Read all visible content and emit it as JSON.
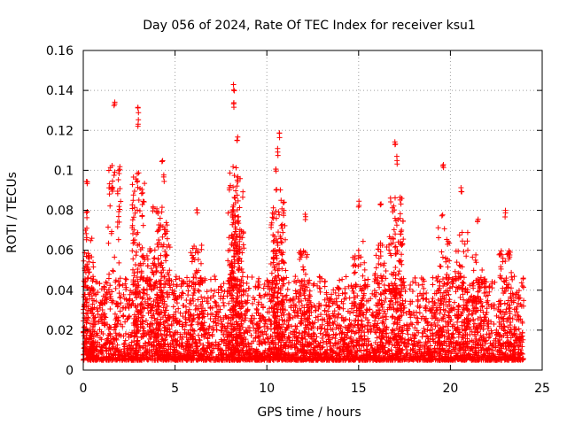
{
  "chart_data": {
    "type": "scatter",
    "title": "Day 056 of 2024, Rate Of TEC Index for receiver ksu1",
    "xlabel": "GPS time / hours",
    "ylabel": "ROTI / TECUs",
    "xlim": [
      0,
      25
    ],
    "ylim": [
      0,
      0.16
    ],
    "x_ticks": [
      0,
      5,
      10,
      15,
      20,
      25
    ],
    "x_tick_labels": [
      "0",
      "5",
      "10",
      "15",
      "20",
      "25"
    ],
    "y_ticks": [
      0,
      0.02,
      0.04,
      0.06,
      0.08,
      0.1,
      0.12,
      0.14,
      0.16
    ],
    "y_tick_labels": [
      "0",
      "0.02",
      "0.04",
      "0.06",
      "0.08",
      "0.1",
      "0.12",
      "0.14",
      "0.16"
    ],
    "grid": true,
    "marker": "+",
    "marker_color": "#ff0000",
    "series": [
      {
        "name": "ROTI",
        "description_range_hours": [
          0,
          24
        ],
        "typical_values_range": [
          0.005,
          0.04
        ],
        "peaks": [
          {
            "x": 1.7,
            "y": 0.135
          },
          {
            "x": 3.0,
            "y": 0.132
          },
          {
            "x": 3.0,
            "y": 0.126
          },
          {
            "x": 4.3,
            "y": 0.108
          },
          {
            "x": 4.4,
            "y": 0.098
          },
          {
            "x": 8.2,
            "y": 0.143
          },
          {
            "x": 8.2,
            "y": 0.135
          },
          {
            "x": 8.4,
            "y": 0.118
          },
          {
            "x": 8.4,
            "y": 0.098
          },
          {
            "x": 10.7,
            "y": 0.12
          },
          {
            "x": 10.6,
            "y": 0.111
          },
          {
            "x": 10.5,
            "y": 0.102
          },
          {
            "x": 17.0,
            "y": 0.116
          },
          {
            "x": 17.1,
            "y": 0.107
          },
          {
            "x": 19.6,
            "y": 0.103
          },
          {
            "x": 20.6,
            "y": 0.093
          },
          {
            "x": 0.2,
            "y": 0.095
          },
          {
            "x": 0.2,
            "y": 0.08
          },
          {
            "x": 15.0,
            "y": 0.085
          },
          {
            "x": 16.2,
            "y": 0.086
          },
          {
            "x": 23.0,
            "y": 0.08
          },
          {
            "x": 6.2,
            "y": 0.082
          },
          {
            "x": 12.1,
            "y": 0.079
          },
          {
            "x": 3.8,
            "y": 0.083
          },
          {
            "x": 21.5,
            "y": 0.076
          }
        ]
      }
    ]
  }
}
